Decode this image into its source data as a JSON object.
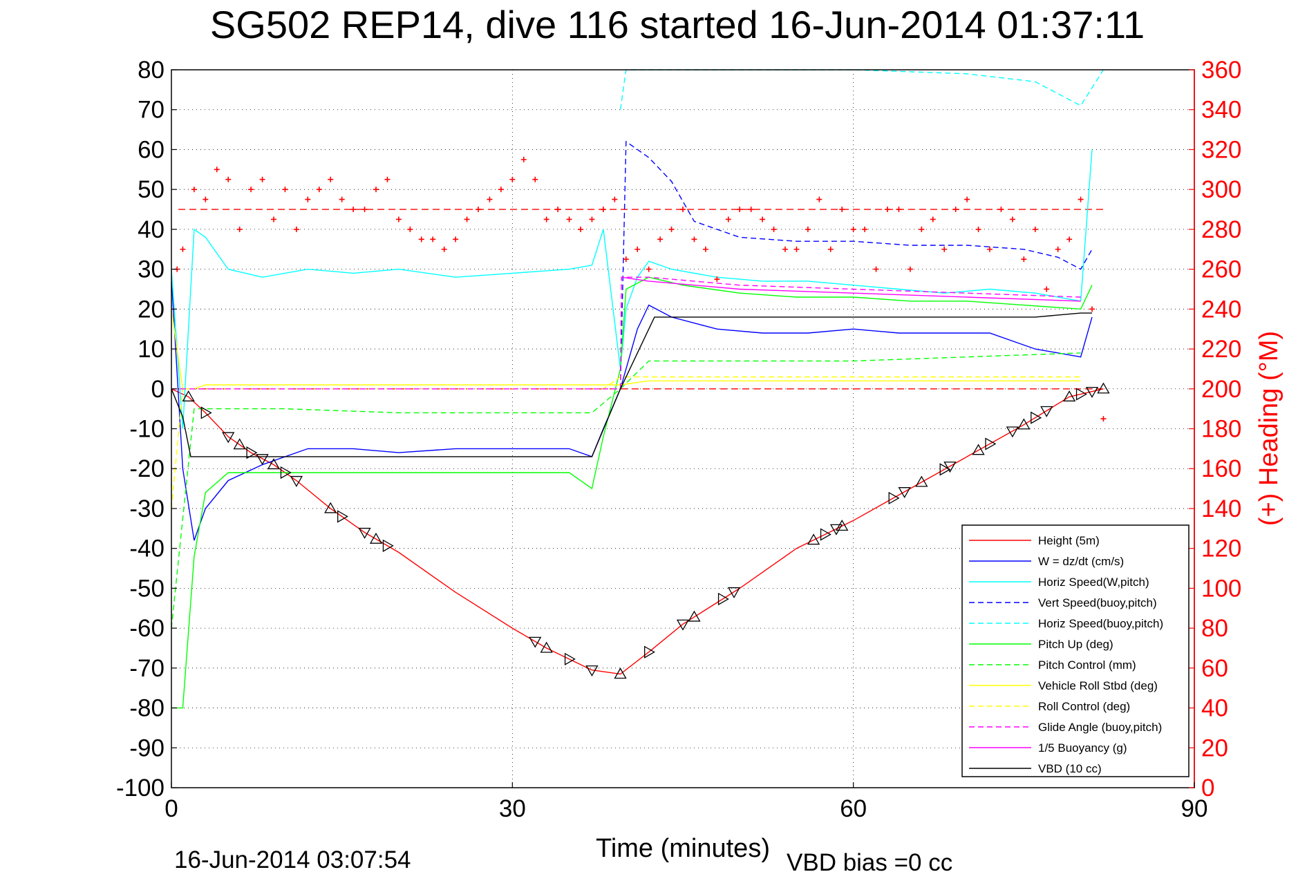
{
  "chart_data": {
    "type": "line",
    "title": "SG502 REP14, dive 116 started 16-Jun-2014 01:37:11",
    "xlabel": "Time (minutes)",
    "ylabel_right": "(+) Heading (°M)",
    "footer_left": "16-Jun-2014 03:07:54",
    "footer_right": "VBD bias =0 cc",
    "xlim": [
      0,
      90
    ],
    "ylim": [
      -100,
      80
    ],
    "ylim_right": [
      0,
      360
    ],
    "xticks": [
      "0",
      "30",
      "60",
      "90"
    ],
    "yticks": [
      "80",
      "70",
      "60",
      "50",
      "40",
      "30",
      "20",
      "10",
      "0",
      "-10",
      "-20",
      "-30",
      "-40",
      "-50",
      "-60",
      "-70",
      "-80",
      "-90",
      "-100"
    ],
    "yticks_right": [
      "360",
      "340",
      "320",
      "300",
      "280",
      "260",
      "240",
      "220",
      "200",
      "180",
      "160",
      "140",
      "120",
      "100",
      "80",
      "60",
      "40",
      "20",
      "0"
    ],
    "grid": true,
    "legend_position": "bottom-right",
    "colors": {
      "right_axis": "#ff0000"
    },
    "series": [
      {
        "name": "Height (5m)",
        "color": "#ff0000",
        "dash": "solid",
        "x": [
          0,
          1.5,
          3,
          5,
          7,
          9,
          11,
          14,
          17,
          20,
          25,
          30,
          33,
          37,
          39.5,
          42,
          45,
          50,
          55,
          60,
          65,
          70,
          75,
          79,
          82
        ],
        "y": [
          0,
          -2,
          -6,
          -12,
          -16,
          -19,
          -23,
          -30,
          -36,
          -41,
          -51,
          -60,
          -65,
          -70.5,
          -71.5,
          -66,
          -59,
          -50,
          -40,
          -33,
          -25,
          -17,
          -9,
          -2,
          0
        ]
      },
      {
        "name": "W = dz/dt (cm/s)",
        "color": "#0000ff",
        "dash": "solid",
        "x": [
          0,
          1,
          2,
          3,
          5,
          8,
          12,
          16,
          20,
          25,
          30,
          35,
          37,
          38,
          39.5,
          41,
          42,
          44,
          48,
          52,
          56,
          60,
          64,
          68,
          72,
          76,
          78,
          80,
          81
        ],
        "y": [
          28,
          -20,
          -38,
          -30,
          -23,
          -19,
          -15,
          -15,
          -16,
          -15,
          -15,
          -15,
          -17,
          -10,
          0,
          15,
          21,
          18,
          15,
          14,
          14,
          15,
          14,
          14,
          14,
          10,
          9,
          8,
          18
        ]
      },
      {
        "name": "Horiz Speed(W,pitch)",
        "color": "#00ffff",
        "dash": "solid",
        "x": [
          0,
          1,
          2,
          3,
          5,
          8,
          12,
          16,
          20,
          25,
          30,
          35,
          37,
          38,
          39.5,
          40,
          41,
          42,
          44,
          48,
          52,
          56,
          60,
          64,
          68,
          72,
          76,
          80,
          81
        ],
        "y": [
          30,
          -10,
          40,
          38,
          30,
          28,
          30,
          29,
          30,
          28,
          29,
          30,
          31,
          40,
          5,
          20,
          28,
          32,
          30,
          28,
          27,
          27,
          26,
          25,
          24,
          25,
          24,
          22,
          60
        ]
      },
      {
        "name": "Vert Speed(buoy,pitch)",
        "color": "#0000ff",
        "dash": "dashed",
        "x": [
          39.5,
          40,
          42,
          44,
          46,
          50,
          55,
          60,
          65,
          70,
          75,
          78,
          80,
          81
        ],
        "y": [
          0,
          62,
          58,
          52,
          42,
          38,
          37,
          37,
          36,
          36,
          35,
          33,
          30,
          35
        ]
      },
      {
        "name": "Horiz Speed(buoy,pitch)",
        "color": "#00ffff",
        "dash": "dashed",
        "x": [
          39.5,
          40,
          42,
          50,
          60,
          70,
          76,
          78,
          80,
          82
        ],
        "y": [
          70,
          80,
          80,
          80,
          80,
          79,
          77,
          74,
          71,
          80
        ]
      },
      {
        "name": "Pitch Up (deg)",
        "color": "#00ff00",
        "dash": "solid",
        "x": [
          0,
          1,
          2,
          3,
          5,
          10,
          15,
          20,
          25,
          30,
          35,
          37,
          38,
          39.5,
          40,
          42,
          45,
          50,
          55,
          60,
          65,
          70,
          75,
          80,
          81
        ],
        "y": [
          -80,
          -80,
          -42,
          -26,
          -21,
          -21,
          -21,
          -21,
          -21,
          -21,
          -21,
          -25,
          -12,
          5,
          25,
          28,
          26,
          24,
          23,
          23,
          22,
          22,
          21,
          20,
          26
        ]
      },
      {
        "name": "Pitch Control (mm)",
        "color": "#00ff00",
        "dash": "dashed",
        "x": [
          0,
          2,
          3,
          10,
          20,
          30,
          37,
          39.5,
          42,
          50,
          60,
          70,
          80
        ],
        "y": [
          -60,
          -5,
          -5,
          -5,
          -6,
          -6,
          -6,
          0,
          7,
          7,
          7,
          8,
          9
        ]
      },
      {
        "name": "Vehicle Roll Stbd (deg)",
        "color": "#ffff00",
        "dash": "solid",
        "x": [
          0,
          1,
          2,
          3,
          5,
          10,
          15,
          20,
          25,
          30,
          35,
          37,
          39.5,
          42,
          45,
          50,
          55,
          60,
          65,
          70,
          75,
          80
        ],
        "y": [
          20,
          0,
          0,
          1,
          1,
          1,
          1,
          1,
          1,
          1,
          1,
          1,
          1,
          2,
          2,
          2,
          2,
          2,
          2,
          2,
          2,
          2
        ]
      },
      {
        "name": "Roll Control (deg)",
        "color": "#ffff00",
        "dash": "dashed",
        "x": [
          0,
          1,
          2,
          10,
          20,
          30,
          38,
          39.5,
          42,
          50,
          60,
          70,
          80
        ],
        "y": [
          -30,
          0,
          0,
          0,
          0,
          0,
          0,
          3,
          3,
          3,
          3,
          3,
          3
        ]
      },
      {
        "name": "Glide Angle (buoy,pitch)",
        "color": "#ff00ff",
        "dash": "dashed",
        "x": [
          0,
          39.5,
          39.6,
          42,
          50,
          60,
          70,
          80
        ],
        "y": [
          0,
          0,
          28,
          28,
          26,
          25,
          24,
          23
        ]
      },
      {
        "name": "1/5 Buoyancy (g)",
        "color": "#ff00ff",
        "dash": "solid",
        "x": [
          39.6,
          42,
          50,
          60,
          70,
          80
        ],
        "y": [
          28,
          27,
          25,
          24,
          23,
          22
        ]
      },
      {
        "name": "VBD (10 cc)",
        "color": "#000000",
        "dash": "solid",
        "x": [
          0,
          1,
          1.7,
          10,
          20,
          30,
          37,
          39.5,
          42.5,
          50,
          60,
          70,
          76,
          80,
          81
        ],
        "y": [
          0,
          -7,
          -17,
          -17,
          -17,
          -17,
          -17,
          0,
          18,
          18,
          18,
          18,
          18,
          19,
          19
        ]
      },
      {
        "name": "(+) Heading (°M)",
        "axis": "right",
        "color": "#ff0000",
        "marker": "+",
        "x": [
          0.5,
          1,
          2,
          3,
          4,
          5,
          6,
          7,
          8,
          9,
          10,
          11,
          12,
          13,
          14,
          15,
          16,
          17,
          18,
          19,
          20,
          21,
          22,
          23,
          24,
          25,
          26,
          27,
          28,
          29,
          30,
          31,
          32,
          33,
          34,
          35,
          36,
          37,
          38,
          39,
          40,
          41,
          42,
          43,
          44,
          45,
          46,
          47,
          48,
          49,
          50,
          51,
          52,
          53,
          54,
          55,
          56,
          57,
          58,
          59,
          60,
          61,
          62,
          63,
          64,
          65,
          66,
          67,
          68,
          69,
          70,
          71,
          72,
          73,
          74,
          75,
          76,
          77,
          78,
          79,
          80,
          81,
          82
        ],
        "y": [
          260,
          270,
          300,
          295,
          310,
          305,
          280,
          300,
          305,
          285,
          300,
          280,
          295,
          300,
          305,
          295,
          290,
          290,
          300,
          305,
          285,
          280,
          275,
          275,
          270,
          275,
          285,
          290,
          295,
          300,
          305,
          315,
          305,
          285,
          290,
          285,
          280,
          285,
          290,
          295,
          265,
          270,
          260,
          275,
          280,
          290,
          275,
          270,
          255,
          285,
          290,
          290,
          285,
          280,
          270,
          270,
          280,
          295,
          270,
          290,
          280,
          280,
          260,
          290,
          290,
          260,
          280,
          285,
          270,
          290,
          295,
          280,
          270,
          290,
          285,
          265,
          280,
          250,
          270,
          275,
          295,
          240,
          185
        ]
      }
    ],
    "reference_lines": [
      {
        "axis": "right",
        "value": 290,
        "color": "#ff0000",
        "dash": "dashed"
      },
      {
        "axis": "left",
        "value": 0,
        "color": "#ff0000",
        "dash": "dashed"
      }
    ],
    "annotation_markers": {
      "symbol": "triangle",
      "color": "#000000",
      "on_series": "Height (5m)",
      "x": [
        1.5,
        3,
        5,
        6,
        7,
        8,
        9,
        10,
        11,
        14,
        15,
        17,
        18,
        19,
        32,
        33,
        35,
        37,
        39.5,
        42,
        45,
        46,
        48.5,
        49.5,
        56.5,
        57.5,
        58.5,
        59,
        63.5,
        64.5,
        66,
        68,
        68.5,
        71,
        72,
        74,
        75,
        76,
        77,
        79,
        80,
        81,
        82
      ]
    }
  }
}
